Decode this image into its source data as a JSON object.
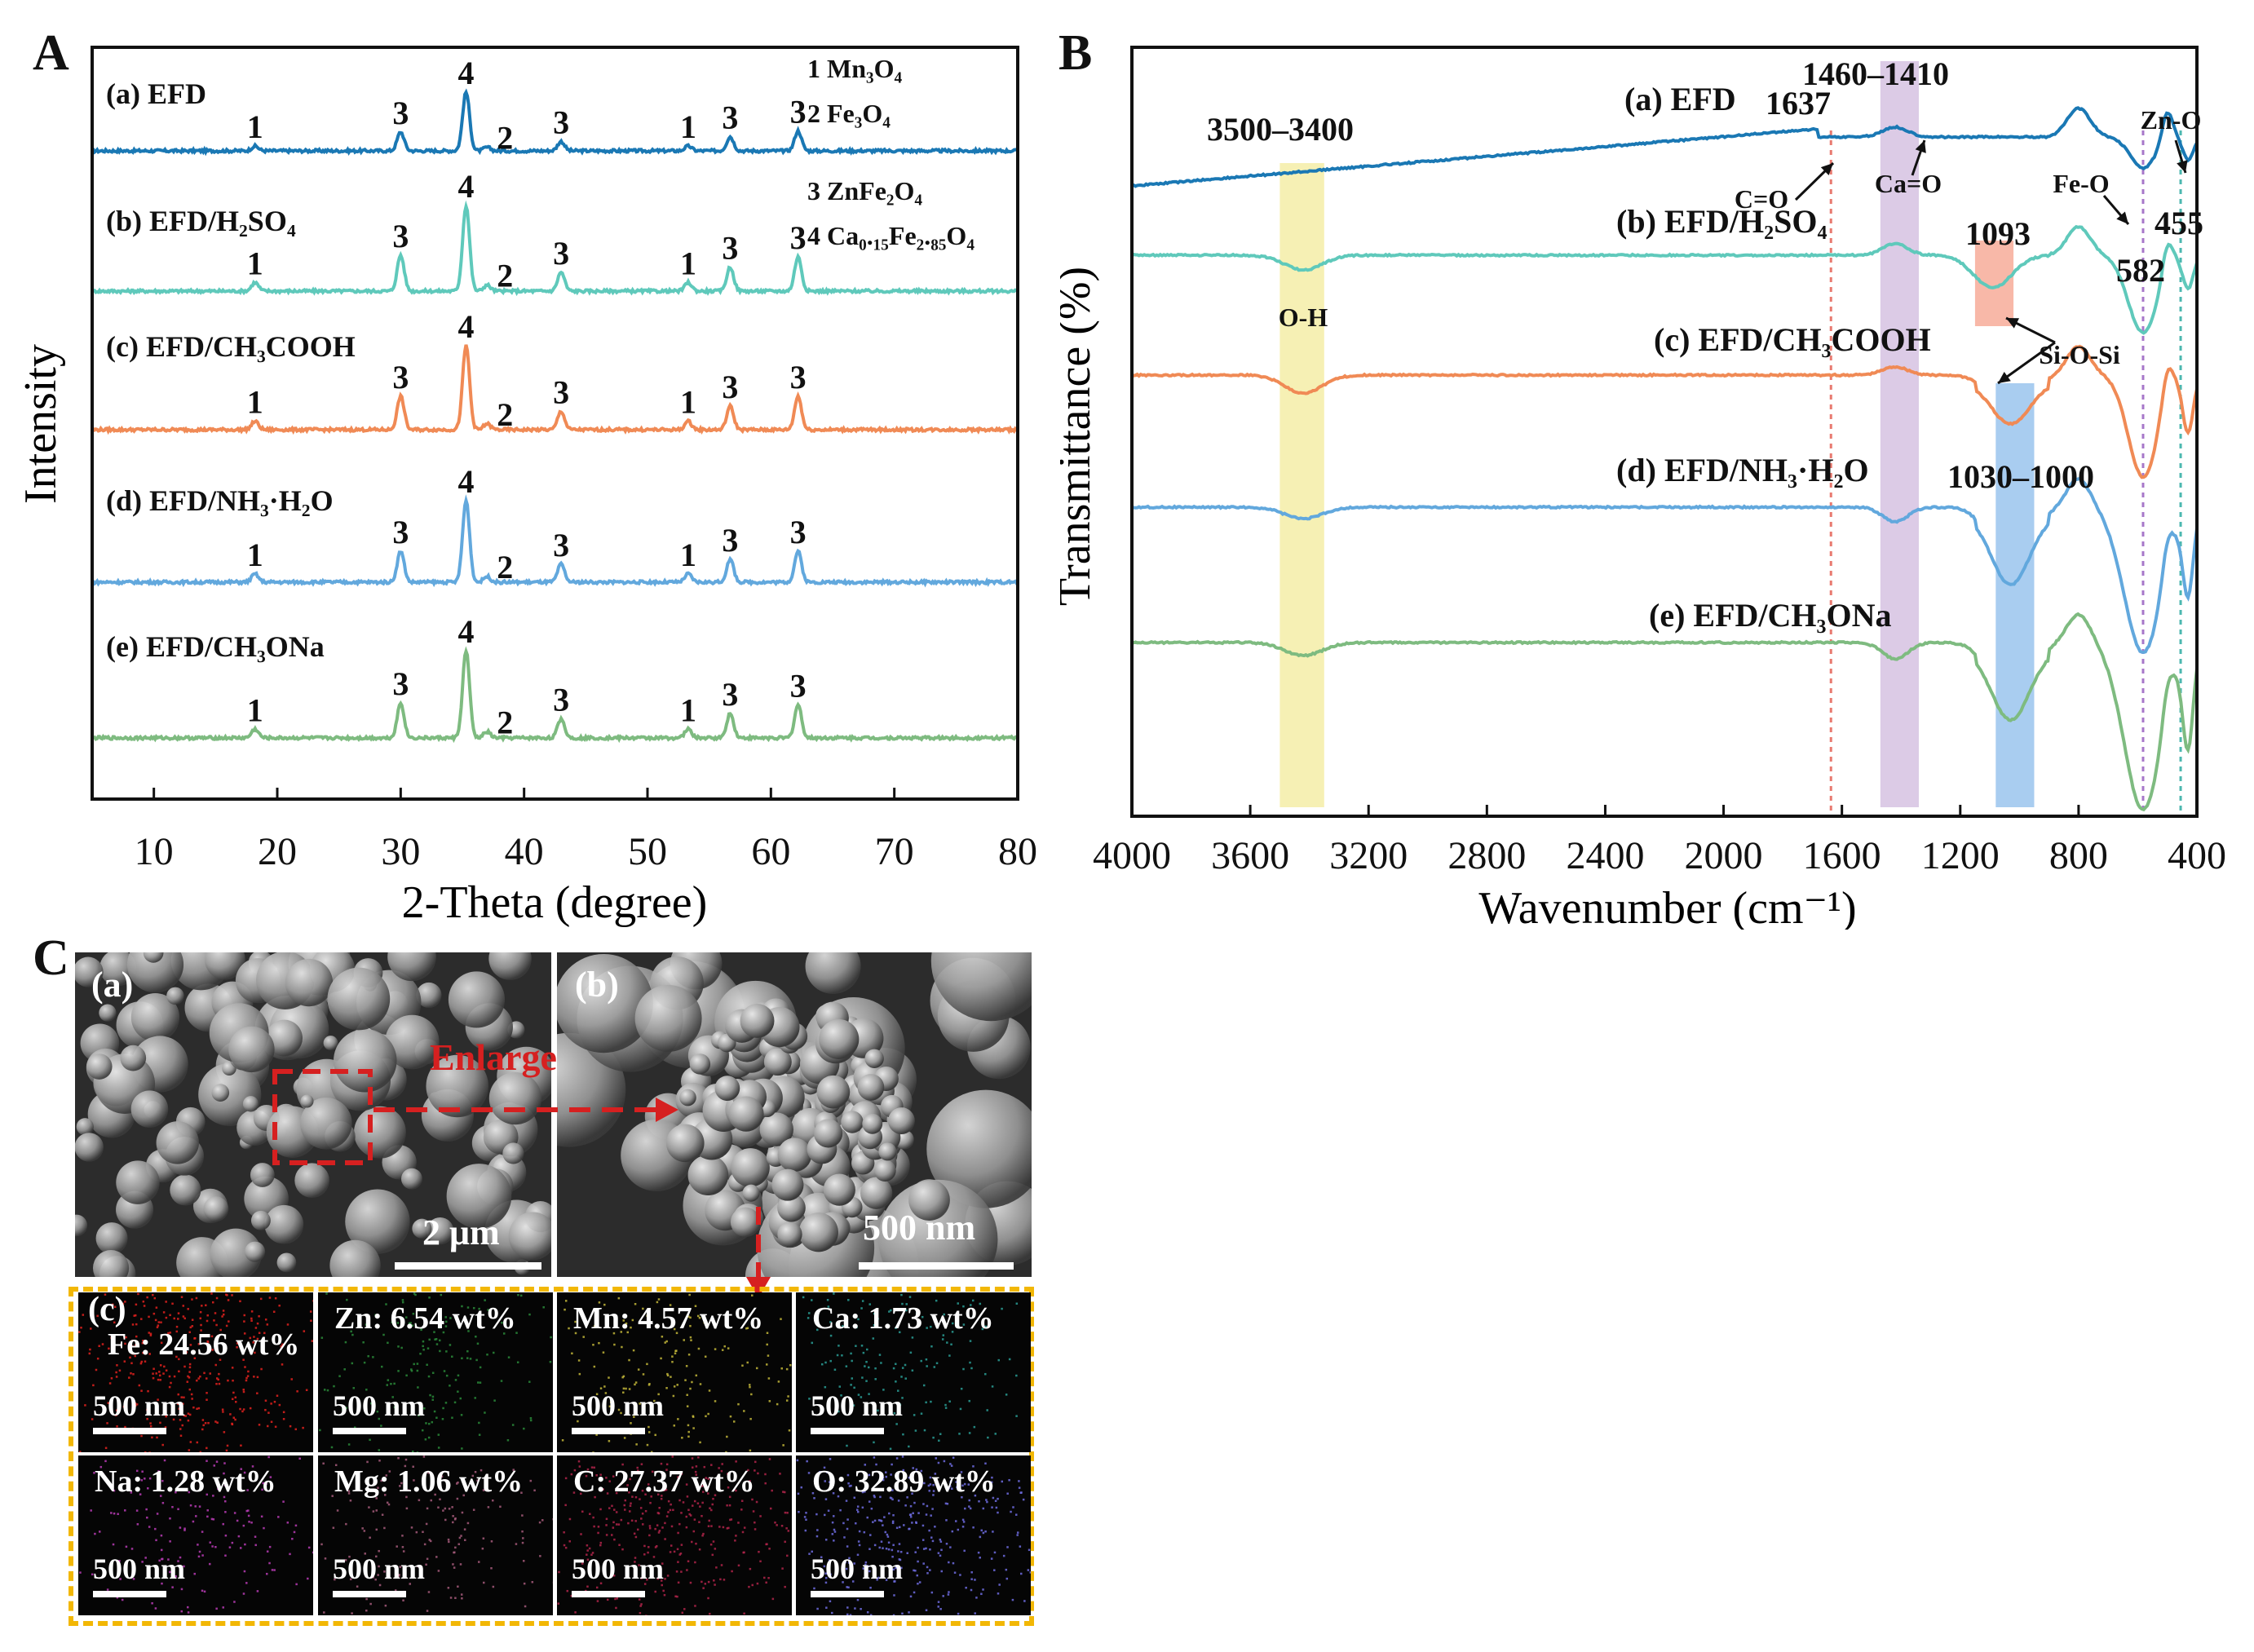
{
  "panels": {
    "A": "A",
    "B": "B",
    "C": "C"
  },
  "chart_data": [
    {
      "type": "line",
      "panel": "A",
      "xlabel": "2-Theta (degree)",
      "ylabel": "Intensity",
      "xlim": [
        5,
        80
      ],
      "xticks": [
        10,
        20,
        30,
        40,
        50,
        60,
        70,
        80
      ],
      "peak_positions": [
        18.2,
        30.0,
        35.3,
        37.0,
        43.0,
        53.3,
        56.7,
        62.2
      ],
      "peak_labels": [
        "1",
        "3",
        "4",
        "2",
        "3",
        "1",
        "3",
        "3"
      ],
      "series": [
        {
          "name": "(a) EFD",
          "color": "#1a78b4",
          "peak_heights": [
            0.08,
            0.32,
            1.0,
            0.06,
            0.16,
            0.08,
            0.24,
            0.34
          ]
        },
        {
          "name": "(b) EFD/H₂SO₄",
          "color": "#5fc9bb",
          "peak_heights": [
            0.1,
            0.42,
            1.0,
            0.07,
            0.22,
            0.1,
            0.28,
            0.4
          ]
        },
        {
          "name": "(c) EFD/CH₃COOH",
          "color": "#f08a55",
          "peak_heights": [
            0.1,
            0.4,
            1.0,
            0.07,
            0.22,
            0.1,
            0.28,
            0.4
          ]
        },
        {
          "name": "(d) EFD/NH₃·H₂O",
          "color": "#62a8dd",
          "peak_heights": [
            0.1,
            0.38,
            1.0,
            0.07,
            0.22,
            0.1,
            0.28,
            0.38
          ]
        },
        {
          "name": "(e) EFD/CH₃ONa",
          "color": "#7ebb80",
          "peak_heights": [
            0.1,
            0.4,
            1.0,
            0.07,
            0.22,
            0.1,
            0.28,
            0.38
          ]
        }
      ],
      "legend": [
        {
          "num": "1",
          "phase": "Mn₃O₄"
        },
        {
          "num": "2",
          "phase": "Fe₃O₄"
        },
        {
          "num": "3",
          "phase": "ZnFe₂O₄"
        },
        {
          "num": "4",
          "phase": "Ca₀.₁₅Fe₂.₈₅O₄"
        }
      ]
    },
    {
      "type": "line",
      "panel": "B",
      "xlabel": "Wavenumber (cm⁻¹)",
      "ylabel": "Transmittance (%)",
      "xlim": [
        4000,
        400
      ],
      "xticks": [
        4000,
        3600,
        3200,
        2800,
        2400,
        2000,
        1600,
        1200,
        800,
        400
      ],
      "series": [
        {
          "name": "(a) EFD",
          "color": "#1a78b4"
        },
        {
          "name": "(b) EFD/H₂SO₄",
          "color": "#5fc9bb"
        },
        {
          "name": "(c) EFD/CH₃COOH",
          "color": "#f08a55"
        },
        {
          "name": "(d) EFD/NH₃·H₂O",
          "color": "#62a8dd"
        },
        {
          "name": "(e) EFD/CH₃ONa",
          "color": "#7ebb80"
        }
      ],
      "bands": [
        {
          "label": "3500–3400",
          "range": [
            3500,
            3350
          ],
          "color": "#f6f0b4",
          "assignment": "O-H"
        },
        {
          "label": "1460–1410",
          "range": [
            1470,
            1340
          ],
          "color": "#dccbe6",
          "assignment": "Ca=O"
        },
        {
          "label": "1093",
          "range": [
            1150,
            1020
          ],
          "color": "#f8b8a8",
          "assignment": "Si-O-Si"
        },
        {
          "label": "1030–1000",
          "range": [
            1080,
            950
          ],
          "color": "#a9cdf0",
          "assignment": ""
        }
      ],
      "dashed_lines": [
        {
          "x": 1637,
          "label": "1637",
          "assignment": "C=O",
          "color": "#e87a70"
        },
        {
          "x": 582,
          "label": "582",
          "assignment": "Fe-O",
          "color": "#a777c9"
        },
        {
          "x": 455,
          "label": "455",
          "assignment": "Zn-O",
          "color": "#4cb8b0"
        }
      ]
    }
  ],
  "panel_c": {
    "sub_labels": [
      "(a)",
      "(b)",
      "(c)"
    ],
    "enlarge_text": "Enlarge",
    "scale_a": "2 μm",
    "scale_b": "500 nm",
    "eds": [
      {
        "label": "Fe: 24.56 wt%",
        "color": "#e3221f",
        "scale": "500 nm"
      },
      {
        "label": "Zn: 6.54 wt%",
        "color": "#2a8a3a",
        "scale": "500 nm"
      },
      {
        "label": "Mn: 4.57 wt%",
        "color": "#c2b63a",
        "scale": "500 nm"
      },
      {
        "label": "Ca: 1.73 wt%",
        "color": "#2a9d95",
        "scale": "500 nm"
      },
      {
        "label": "Na: 1.28 wt%",
        "color": "#b83cb5",
        "scale": "500 nm"
      },
      {
        "label": "Mg: 1.06 wt%",
        "color": "#a45a7a",
        "scale": "500 nm"
      },
      {
        "label": "C: 27.37 wt%",
        "color": "#b0254a",
        "scale": "500 nm"
      },
      {
        "label": "O: 32.89 wt%",
        "color": "#6e6ce0",
        "scale": "500 nm"
      }
    ]
  }
}
